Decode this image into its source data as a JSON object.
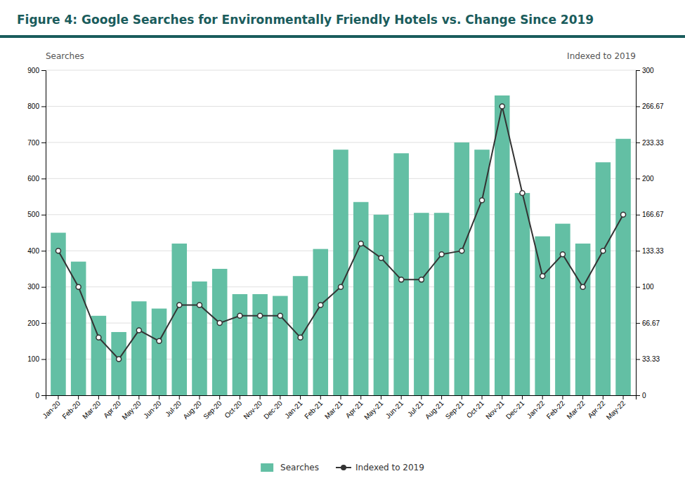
{
  "chart_data": {
    "type": "bar",
    "title": "Figure 4: Google Searches for Environmentally Friendly Hotels vs. Change Since 2019",
    "ylabel": "Searches",
    "y2label": "Indexed to 2019",
    "categories": [
      "Jan-20",
      "Feb-20",
      "Mar-20",
      "Apr-20",
      "May-20",
      "Jun-20",
      "Jul-20",
      "Aug-20",
      "Sep-20",
      "Oct-20",
      "Nov-20",
      "Dec-20",
      "Jan-21",
      "Feb-21",
      "Mar-21",
      "Apr-21",
      "May-21",
      "Jun-21",
      "Jul-21",
      "Aug-21",
      "Sep-21",
      "Oct-21",
      "Nov-21",
      "Dec-21",
      "Jan-22",
      "Feb-22",
      "Mar-22",
      "Apr-22",
      "May-22"
    ],
    "series": [
      {
        "name": "Searches",
        "type": "bar",
        "color": "#63bfa4",
        "values": [
          450,
          370,
          220,
          175,
          260,
          240,
          420,
          315,
          350,
          280,
          280,
          275,
          330,
          405,
          680,
          535,
          500,
          670,
          505,
          505,
          700,
          680,
          830,
          560,
          440,
          475,
          420,
          645,
          710
        ]
      },
      {
        "name": "Indexed to 2019",
        "type": "line",
        "axis": "y2",
        "color": "#333333",
        "marker": "circle",
        "values": [
          133.33,
          100,
          53.33,
          33.33,
          60,
          50,
          83.33,
          83.33,
          66.67,
          73.33,
          73.33,
          73.33,
          53.33,
          83.33,
          100,
          140,
          126.67,
          106.67,
          106.67,
          130,
          133.33,
          180,
          266.67,
          186.67,
          110,
          130,
          100,
          133.33,
          166.67
        ]
      }
    ],
    "ylim": [
      0,
      900
    ],
    "yticks": [
      0,
      100,
      200,
      300,
      400,
      500,
      600,
      700,
      800,
      900
    ],
    "y2lim": [
      0,
      300
    ],
    "y2ticks": [
      0,
      33.33,
      66.67,
      100,
      133.33,
      166.67,
      200,
      233.33,
      266.67,
      300
    ],
    "grid": true,
    "legend": "bottom"
  }
}
